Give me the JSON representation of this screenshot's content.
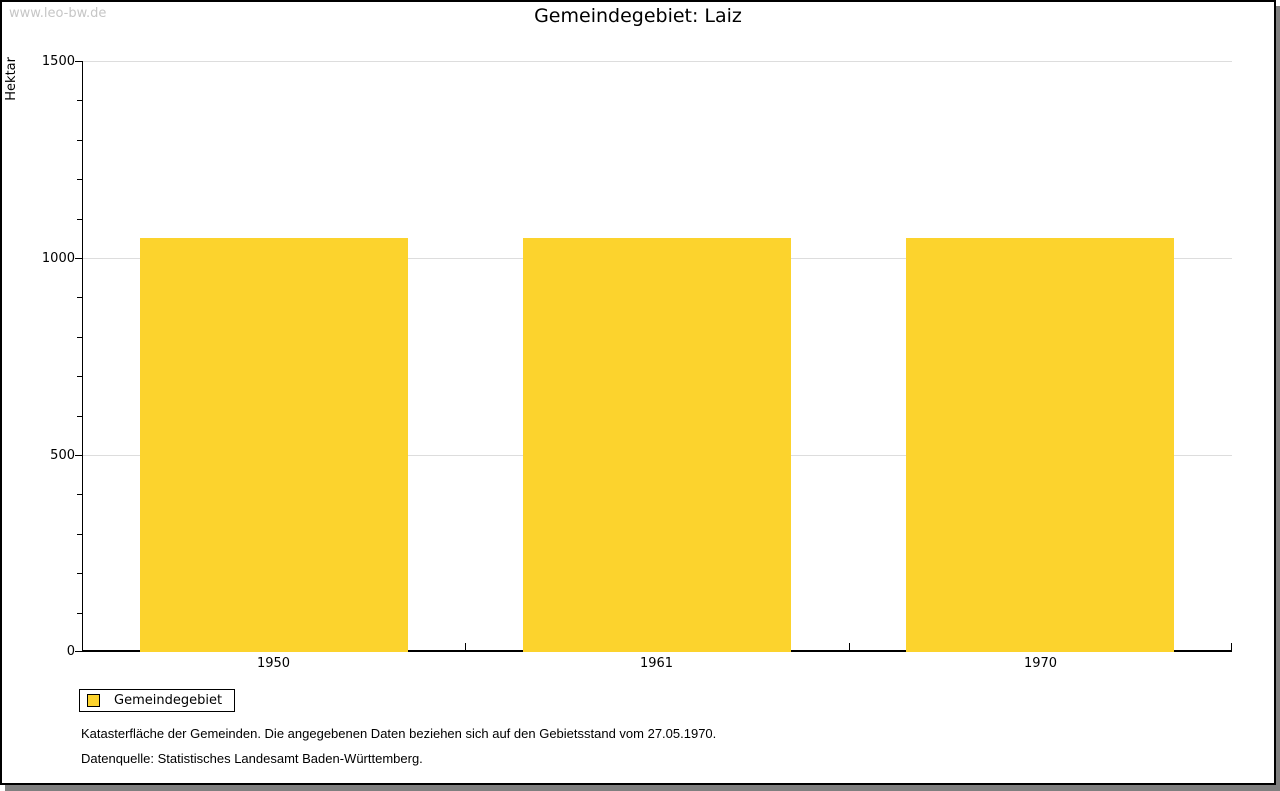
{
  "watermark": "www.leo-bw.de",
  "title": "Gemeindegebiet: Laiz",
  "chart_data": {
    "type": "bar",
    "title": "Gemeindegebiet: Laiz",
    "categories": [
      "1950",
      "1961",
      "1970"
    ],
    "series": [
      {
        "name": "Gemeindegebiet",
        "values": [
          1050,
          1050,
          1050
        ]
      }
    ],
    "xlabel": "",
    "ylabel": "Hektar",
    "ylim": [
      0,
      1500
    ],
    "yticks": [
      0,
      500,
      1000,
      1500
    ],
    "ytick_minor_step": 100,
    "grid": true,
    "legend_position": "bottom-left",
    "bar_color": "#fcd32d"
  },
  "legend": {
    "label": "Gemeindegebiet",
    "swatch_color": "#fcd32d"
  },
  "footer": {
    "line1": "Katasterfläche der Gemeinden. Die angegebenen Daten beziehen sich auf den Gebietsstand vom 27.05.1970.",
    "line2": "Datenquelle: Statistisches Landesamt Baden-Württemberg."
  },
  "colors": {
    "bar": "#fcd32d",
    "grid": "#dddddd",
    "axis": "#000000",
    "watermark": "#c6c6c6",
    "frame_shadow": "#7f7f7f"
  }
}
